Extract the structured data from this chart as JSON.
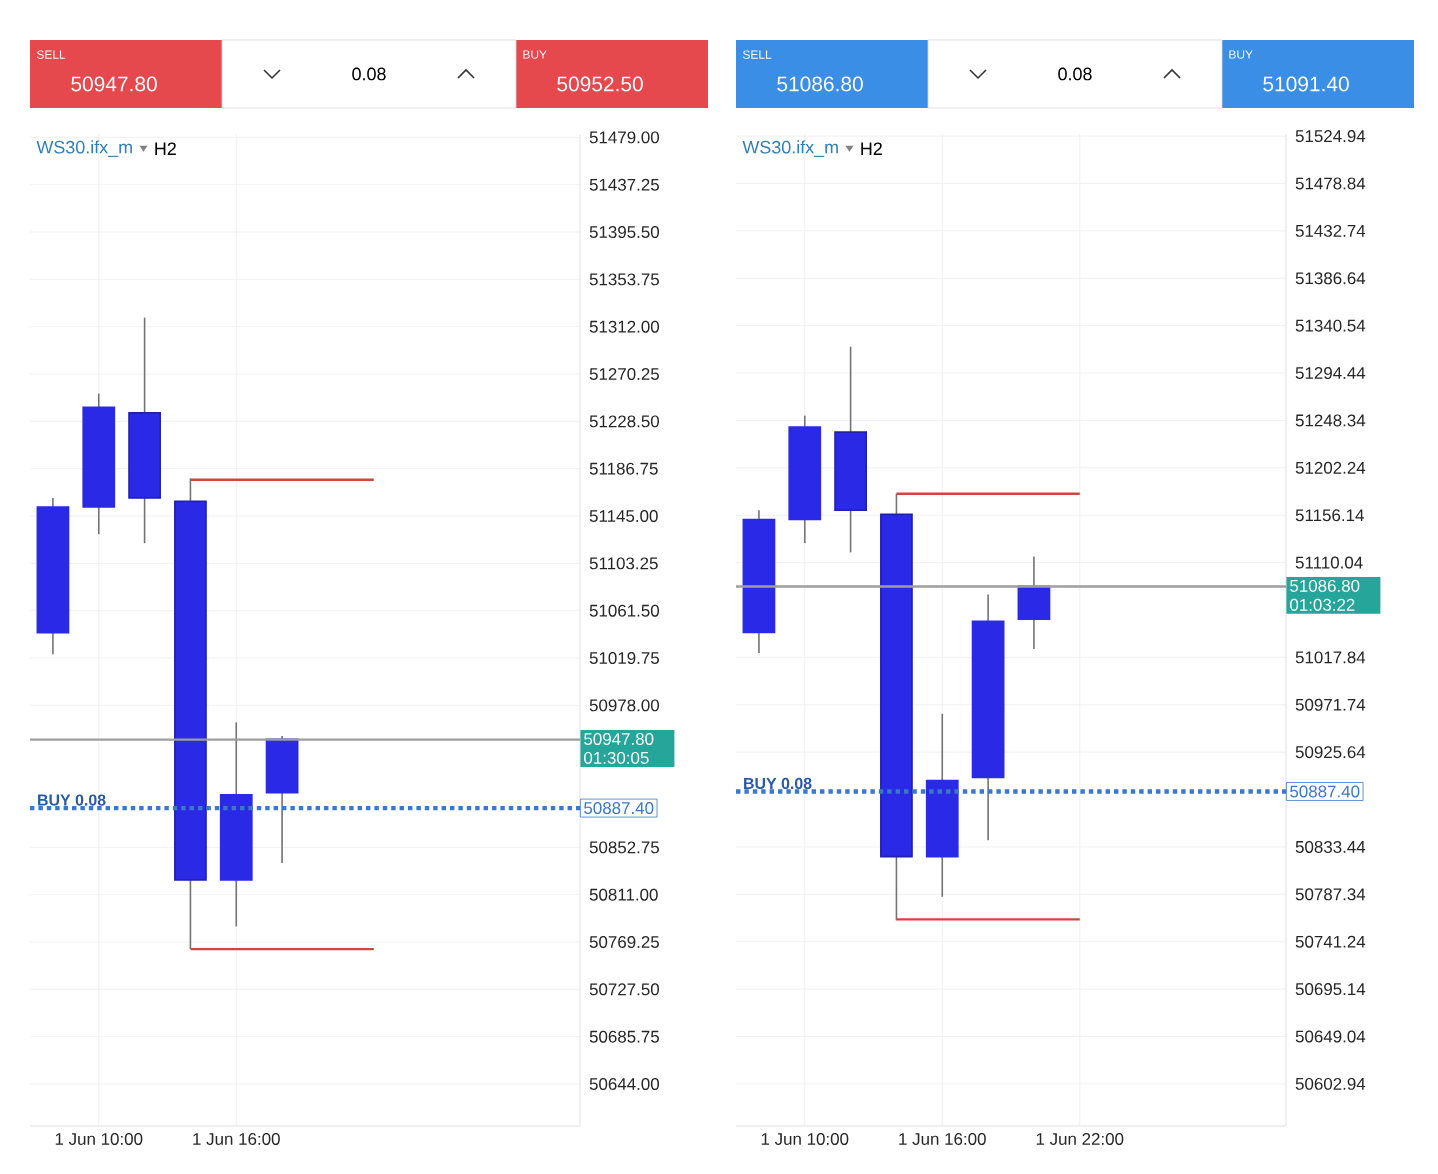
{
  "chart_data": [
    {
      "type": "candlestick",
      "title": "WS30.ifx_m",
      "subtitle": "H2",
      "categories": [
        null,
        "1 Jun 10:00",
        null,
        null,
        "1 Jun 16:00",
        null,
        null,
        null,
        null,
        null,
        null,
        null
      ],
      "color": "#2a2ae6",
      "ohlc": [
        [
          51042,
          51161,
          51023,
          51153
        ],
        [
          51153,
          51253,
          51129,
          51241
        ],
        [
          51236,
          51320,
          51121,
          51161
        ],
        [
          51158,
          51178,
          50763,
          50824
        ],
        [
          50824,
          50963,
          50783,
          50899
        ],
        [
          50901,
          50951,
          50839,
          50948
        ],
        null,
        null,
        null,
        null,
        null,
        null
      ],
      "series": [
        {
          "type": "line",
          "color": "#d0463c",
          "values": [
            null,
            null,
            null,
            51177,
            51177,
            51177,
            51177,
            51177,
            null,
            null,
            null,
            null
          ]
        },
        {
          "type": "line",
          "color": "#d0463c",
          "values": [
            null,
            null,
            null,
            50763,
            50763,
            50763,
            50763,
            50763,
            null,
            null,
            null,
            null
          ]
        }
      ],
      "ylim": [
        50607,
        51482
      ],
      "yticks": [
        {
          "value": 51479,
          "label": "51479.00"
        },
        {
          "value": 51437.25,
          "label": "51437.25"
        },
        {
          "value": 51395.5,
          "label": "51395.50"
        },
        {
          "value": 51353.75,
          "label": "51353.75"
        },
        {
          "value": 51312,
          "label": "51312.00"
        },
        {
          "value": 51270.25,
          "label": "51270.25"
        },
        {
          "value": 51228.5,
          "label": "51228.50"
        },
        {
          "value": 51186.75,
          "label": "51186.75"
        },
        {
          "value": 51145,
          "label": "51145.00"
        },
        {
          "value": 51103.25,
          "label": "51103.25"
        },
        {
          "value": 51061.5,
          "label": "51061.50"
        },
        {
          "value": 51019.75,
          "label": "51019.75"
        },
        {
          "value": 50978,
          "label": "50978.00"
        },
        {
          "value": 50852.75,
          "label": "50852.75"
        },
        {
          "value": 50811,
          "label": "50811.00"
        },
        {
          "value": 50769.25,
          "label": "50769.25"
        },
        {
          "value": 50727.5,
          "label": "50727.50"
        },
        {
          "value": 50685.75,
          "label": "50685.75"
        },
        {
          "value": 50644,
          "label": "50644.00"
        }
      ],
      "grid": true,
      "ref_lines": [
        {
          "axis": "y",
          "value": 50947.8,
          "label": "50947.80 01:30:05",
          "color": "#9e9e9e",
          "line_style": "solid"
        },
        {
          "axis": "y",
          "value": 50887.4,
          "label": "50887.40",
          "color": "#3a78c9",
          "line_style": "dotted"
        }
      ],
      "annotations": [
        "SELL",
        "50947.80",
        "0.08",
        "BUY",
        "50952.50",
        {
          "text": "BUY 0.08",
          "y": 50887.4
        }
      ]
    },
    {
      "type": "candlestick",
      "title": "WS30.ifx_m",
      "subtitle": "H2",
      "categories": [
        null,
        "1 Jun 10:00",
        null,
        null,
        "1 Jun 16:00",
        null,
        null,
        "1 Jun 22:00",
        null,
        null,
        null,
        null
      ],
      "color": "#2a2ae6",
      "ohlc": [
        [
          51042,
          51161,
          51022,
          51152
        ],
        [
          51152,
          51253,
          51129,
          51242
        ],
        [
          51237,
          51320,
          51120,
          51161
        ],
        [
          51157,
          51177,
          50762,
          50824
        ],
        [
          50824,
          50963,
          50785,
          50898
        ],
        [
          50901,
          51079,
          50840,
          51053
        ],
        [
          51055,
          51116,
          51026,
          51087
        ],
        null,
        null,
        null,
        null,
        null
      ],
      "series": [
        {
          "type": "line",
          "color": "#d0463c",
          "values": [
            null,
            null,
            null,
            51177,
            51177,
            51177,
            51177,
            51177,
            null,
            null,
            null,
            null
          ]
        },
        {
          "type": "line",
          "color": "#d0463c",
          "values": [
            null,
            null,
            null,
            50763,
            50763,
            50763,
            50763,
            50763,
            null,
            null,
            null,
            null
          ]
        }
      ],
      "ylim": [
        50562,
        51527
      ],
      "yticks": [
        {
          "value": 51524.94,
          "label": "51524.94"
        },
        {
          "value": 51478.84,
          "label": "51478.84"
        },
        {
          "value": 51432.74,
          "label": "51432.74"
        },
        {
          "value": 51386.64,
          "label": "51386.64"
        },
        {
          "value": 51340.54,
          "label": "51340.54"
        },
        {
          "value": 51294.44,
          "label": "51294.44"
        },
        {
          "value": 51248.34,
          "label": "51248.34"
        },
        {
          "value": 51202.24,
          "label": "51202.24"
        },
        {
          "value": 51156.14,
          "label": "51156.14"
        },
        {
          "value": 51110.04,
          "label": "51110.04"
        },
        {
          "value": 51017.84,
          "label": "51017.84"
        },
        {
          "value": 50971.74,
          "label": "50971.74"
        },
        {
          "value": 50925.64,
          "label": "50925.64"
        },
        {
          "value": 50833.44,
          "label": "50833.44"
        },
        {
          "value": 50787.34,
          "label": "50787.34"
        },
        {
          "value": 50741.24,
          "label": "50741.24"
        },
        {
          "value": 50695.14,
          "label": "50695.14"
        },
        {
          "value": 50649.04,
          "label": "50649.04"
        },
        {
          "value": 50602.94,
          "label": "50602.94"
        }
      ],
      "grid": true,
      "ref_lines": [
        {
          "axis": "y",
          "value": 51086.8,
          "label": "51086.80 01:03:22",
          "color": "#9e9e9e",
          "line_style": "solid"
        },
        {
          "axis": "y",
          "value": 50887.4,
          "label": "50887.40",
          "color": "#3a78c9",
          "line_style": "dotted"
        }
      ],
      "annotations": [
        "SELL",
        "51086.80",
        "0.08",
        "BUY",
        "51091.40",
        {
          "text": "BUY 0.08",
          "y": 50887.4
        }
      ]
    }
  ]
}
